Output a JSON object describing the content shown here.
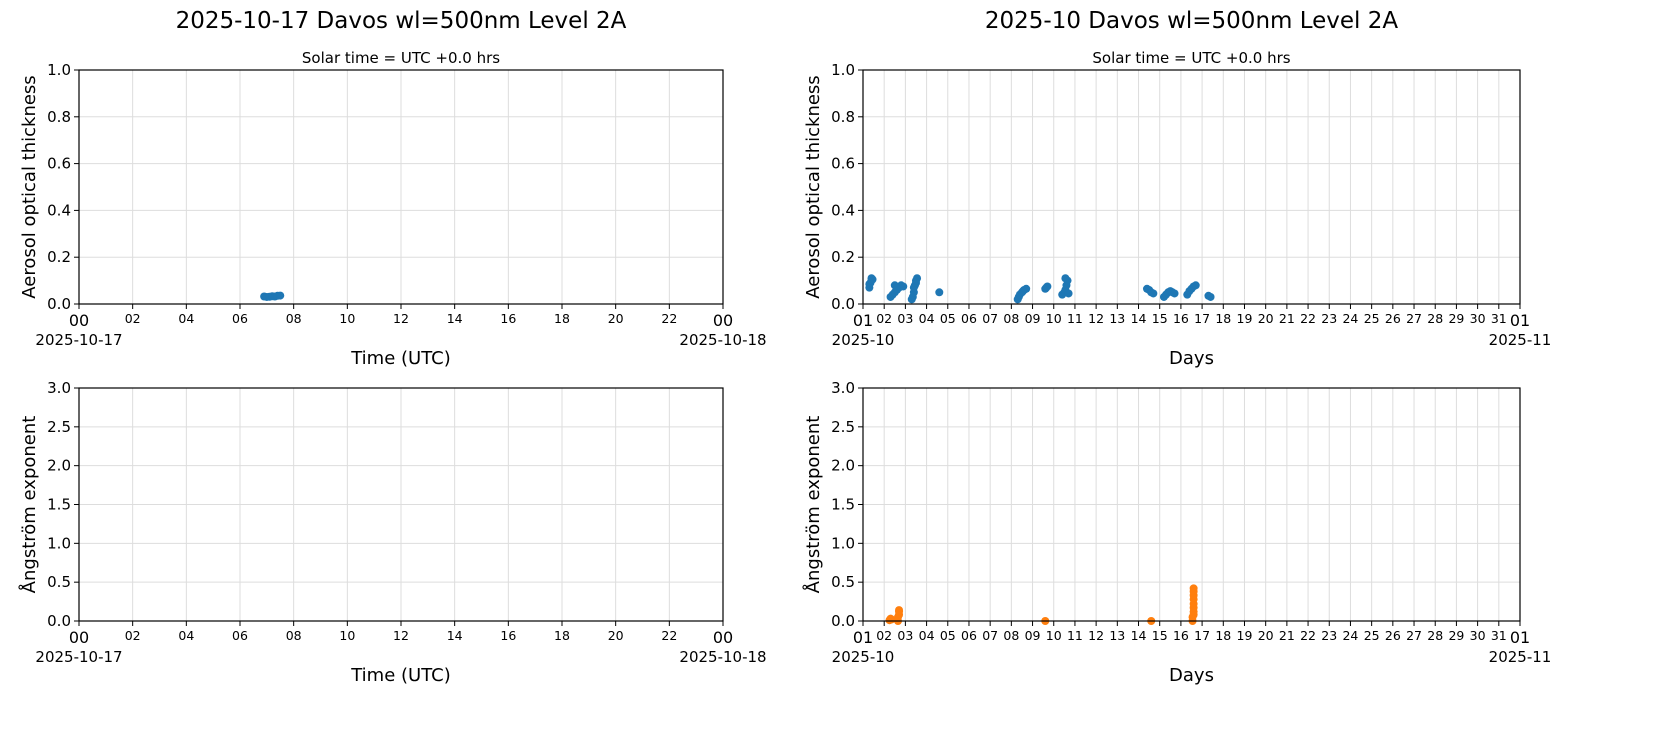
{
  "colors": {
    "aod": "#1f77b4",
    "angstrom": "#ff7f0e",
    "grid": "#dddddd",
    "axis": "#000000"
  },
  "left": {
    "suptitle": "2025-10-17  Davos  wl=500nm  Level 2A",
    "subtitle": "Solar time = UTC +0.0 hrs",
    "xlabel": "Time (UTC)",
    "x_ticks": [
      "00",
      "02",
      "04",
      "06",
      "08",
      "10",
      "12",
      "14",
      "16",
      "18",
      "20",
      "22",
      "00"
    ],
    "x_start_date": "2025-10-17",
    "x_end_date": "2025-10-18"
  },
  "right": {
    "suptitle": "2025-10  Davos  wl=500nm  Level 2A",
    "subtitle": "Solar time = UTC +0.0 hrs",
    "xlabel": "Days",
    "x_ticks": [
      "01",
      "02",
      "03",
      "04",
      "05",
      "06",
      "07",
      "08",
      "09",
      "10",
      "11",
      "12",
      "13",
      "14",
      "15",
      "16",
      "17",
      "18",
      "19",
      "20",
      "21",
      "22",
      "23",
      "24",
      "25",
      "26",
      "27",
      "28",
      "29",
      "30",
      "31",
      "01"
    ],
    "x_start_date": "2025-10",
    "x_end_date": "2025-11"
  },
  "chart_data": [
    {
      "type": "scatter",
      "title": "2025-10-17  Davos  wl=500nm  Level 2A",
      "subtitle": "Solar time = UTC +0.0 hrs",
      "xlabel": "Time (UTC)",
      "ylabel": "Aerosol optical thickness",
      "xlim": [
        0,
        24
      ],
      "ylim": [
        0,
        1.0
      ],
      "y_ticks": [
        "0.0",
        "0.2",
        "0.4",
        "0.6",
        "0.8",
        "1.0"
      ],
      "grid": true,
      "series": [
        {
          "name": "AOD 500nm",
          "color": "#1f77b4",
          "x": [
            6.9,
            7.0,
            7.1,
            7.2,
            7.3,
            7.4,
            7.5
          ],
          "y": [
            0.032,
            0.03,
            0.031,
            0.033,
            0.032,
            0.035,
            0.036
          ]
        }
      ]
    },
    {
      "type": "scatter",
      "title": "2025-10-17  Davos  wl=500nm  Level 2A",
      "xlabel": "Time (UTC)",
      "ylabel": "Ångström exponent",
      "xlim": [
        0,
        24
      ],
      "ylim": [
        0,
        3.0
      ],
      "y_ticks": [
        "0.0",
        "0.5",
        "1.0",
        "1.5",
        "2.0",
        "2.5",
        "3.0"
      ],
      "grid": true,
      "series": [
        {
          "name": "Angstrom",
          "color": "#ff7f0e",
          "x": [],
          "y": []
        }
      ]
    },
    {
      "type": "scatter",
      "title": "2025-10  Davos  wl=500nm  Level 2A",
      "subtitle": "Solar time = UTC +0.0 hrs",
      "xlabel": "Days",
      "ylabel": "Aerosol optical thickness",
      "xlim": [
        1,
        32
      ],
      "ylim": [
        0,
        1.0
      ],
      "y_ticks": [
        "0.0",
        "0.2",
        "0.4",
        "0.6",
        "0.8",
        "1.0"
      ],
      "grid": true,
      "series": [
        {
          "name": "AOD 500nm",
          "color": "#1f77b4",
          "x": [
            1.3,
            1.3,
            1.35,
            1.4,
            1.4,
            1.45,
            2.3,
            2.4,
            2.5,
            2.6,
            2.7,
            2.8,
            2.9,
            2.5,
            2.6,
            3.3,
            3.35,
            3.4,
            3.4,
            3.45,
            3.5,
            3.5,
            3.55,
            4.6,
            8.3,
            8.35,
            8.4,
            8.5,
            8.6,
            8.7,
            8.55,
            9.6,
            9.65,
            9.7,
            10.4,
            10.5,
            10.55,
            10.6,
            10.65,
            10.7,
            10.55,
            14.4,
            14.5,
            14.6,
            14.7,
            15.2,
            15.3,
            15.4,
            15.5,
            15.6,
            15.7,
            16.3,
            16.4,
            16.5,
            16.6,
            16.7,
            17.3,
            17.4
          ],
          "y": [
            0.07,
            0.085,
            0.09,
            0.1,
            0.11,
            0.105,
            0.03,
            0.04,
            0.05,
            0.06,
            0.07,
            0.08,
            0.075,
            0.08,
            0.065,
            0.02,
            0.03,
            0.05,
            0.07,
            0.08,
            0.09,
            0.1,
            0.11,
            0.05,
            0.02,
            0.03,
            0.04,
            0.05,
            0.06,
            0.065,
            0.055,
            0.065,
            0.07,
            0.075,
            0.04,
            0.05,
            0.06,
            0.08,
            0.1,
            0.045,
            0.11,
            0.065,
            0.06,
            0.05,
            0.045,
            0.03,
            0.04,
            0.05,
            0.055,
            0.05,
            0.045,
            0.04,
            0.055,
            0.065,
            0.075,
            0.08,
            0.035,
            0.03
          ]
        }
      ]
    },
    {
      "type": "scatter",
      "title": "2025-10  Davos  wl=500nm  Level 2A",
      "xlabel": "Days",
      "ylabel": "Ångström exponent",
      "xlim": [
        1,
        32
      ],
      "ylim": [
        0,
        3.0
      ],
      "y_ticks": [
        "0.0",
        "0.5",
        "1.0",
        "1.5",
        "2.0",
        "2.5",
        "3.0"
      ],
      "grid": true,
      "series": [
        {
          "name": "Angstrom",
          "color": "#ff7f0e",
          "x": [
            2.25,
            2.3,
            2.35,
            2.65,
            2.65,
            2.7,
            2.7,
            2.7,
            9.6,
            14.6,
            16.55,
            16.55,
            16.6,
            16.6,
            16.6,
            16.6,
            16.6,
            16.6,
            16.6,
            16.6
          ],
          "y": [
            0.01,
            0.03,
            0.02,
            0.0,
            0.05,
            0.08,
            0.12,
            0.14,
            0.0,
            0.0,
            0.0,
            0.05,
            0.08,
            0.12,
            0.17,
            0.22,
            0.28,
            0.33,
            0.38,
            0.42
          ]
        }
      ]
    }
  ]
}
